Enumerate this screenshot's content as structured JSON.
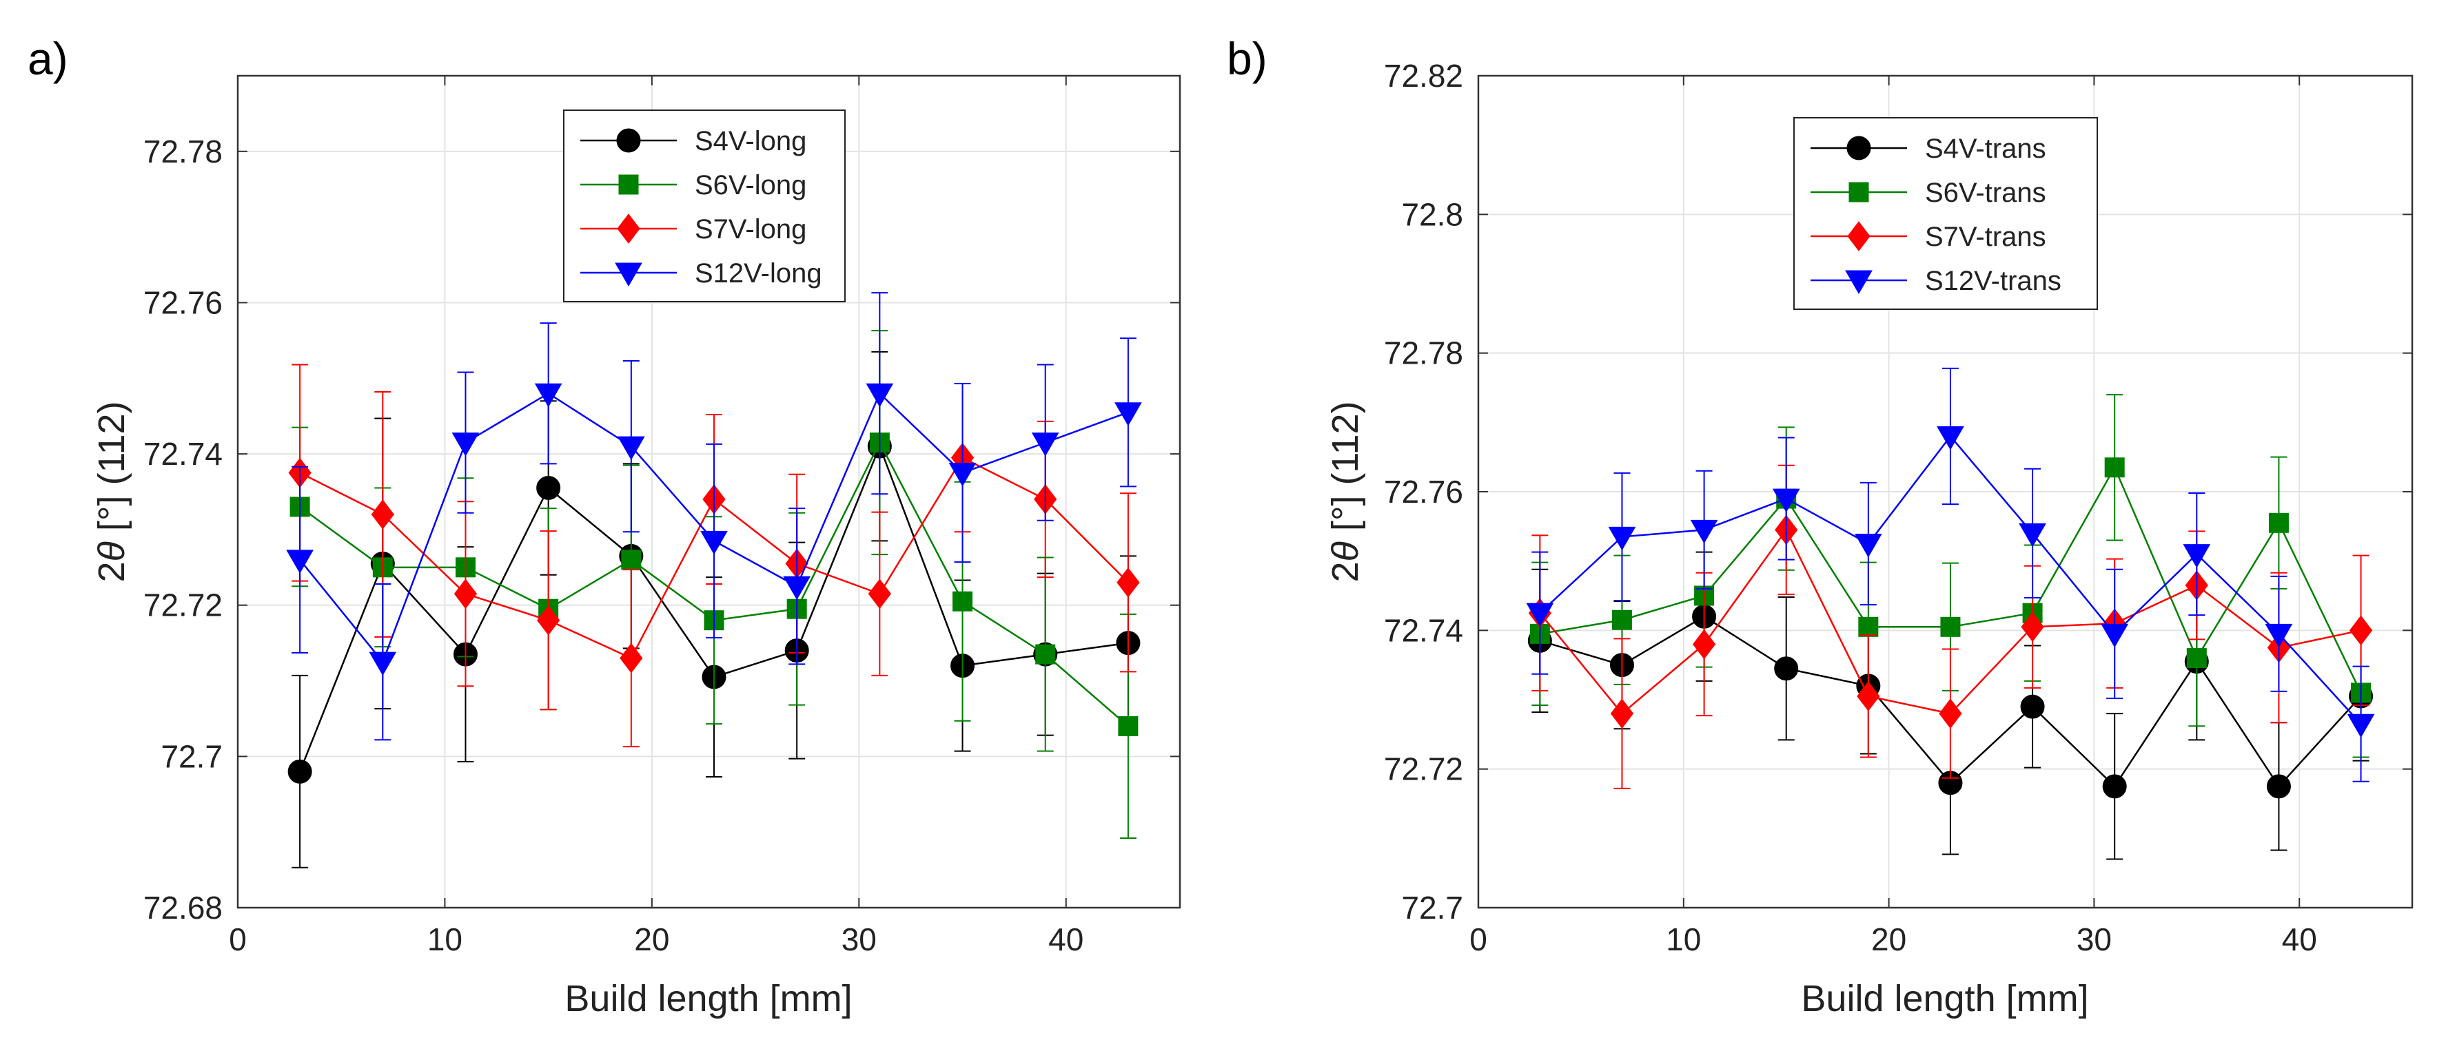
{
  "chart_data": [
    {
      "type": "line",
      "panel_label": "a)",
      "xlabel": "Build length [mm]",
      "ylabel_prefix": "2",
      "ylabel_theta": "θ",
      "ylabel_suffix": " [°] (112)",
      "xlim": [
        0,
        45.5
      ],
      "ylim": [
        72.68,
        72.79
      ],
      "xticks": [
        0,
        10,
        20,
        30,
        40
      ],
      "xtick_labels": [
        "0",
        "10",
        "20",
        "30",
        "40"
      ],
      "yticks": [
        72.68,
        72.7,
        72.72,
        72.74,
        72.76,
        72.78
      ],
      "ytick_labels": [
        "72.68",
        "72.7",
        "72.72",
        "72.74",
        "72.76",
        "72.78"
      ],
      "grid": true,
      "legend_position": "top-center",
      "x": [
        3,
        7,
        11,
        15,
        19,
        23,
        27,
        31,
        35,
        39,
        43
      ],
      "series": [
        {
          "name": "S4V-long",
          "color": "#000000",
          "marker": "circle",
          "values": [
            72.698,
            72.7255,
            72.7135,
            72.7355,
            72.7265,
            72.7105,
            72.714,
            72.741,
            72.712,
            72.7135,
            72.715
          ],
          "errors": [
            0.0127,
            0.0192,
            0.0142,
            0.0115,
            0.0122,
            0.0132,
            0.0143,
            0.0125,
            0.0113,
            0.0107,
            0.0115
          ]
        },
        {
          "name": "S6V-long",
          "color": "#008000",
          "marker": "square",
          "values": [
            72.733,
            72.725,
            72.725,
            72.7195,
            72.726,
            72.718,
            72.7195,
            72.7415,
            72.7205,
            72.7135,
            72.704
          ],
          "errors": [
            0.0105,
            0.0105,
            0.0118,
            0.0133,
            0.0125,
            0.0137,
            0.0127,
            0.0148,
            0.0158,
            0.0128,
            0.0148
          ]
        },
        {
          "name": "S7V-long",
          "color": "#ff0000",
          "marker": "diamond",
          "values": [
            72.7375,
            72.732,
            72.7215,
            72.718,
            72.713,
            72.734,
            72.7255,
            72.7215,
            72.7395,
            72.734,
            72.723
          ],
          "errors": [
            0.0143,
            0.0162,
            0.0122,
            0.0118,
            0.0117,
            0.0112,
            0.0118,
            0.0108,
            0.0098,
            0.0103,
            0.0118
          ]
        },
        {
          "name": "S12V-long",
          "color": "#0000ff",
          "marker": "triangle-down",
          "values": [
            72.726,
            72.7125,
            72.7415,
            72.748,
            72.741,
            72.7285,
            72.7225,
            72.748,
            72.7375,
            72.7415,
            72.7455
          ],
          "errors": [
            0.0123,
            0.0103,
            0.0093,
            0.0093,
            0.0113,
            0.0128,
            0.0103,
            0.0133,
            0.0118,
            0.0103,
            0.0098
          ]
        }
      ]
    },
    {
      "type": "line",
      "panel_label": "b)",
      "xlabel": "Build length [mm]",
      "ylabel_prefix": "2",
      "ylabel_theta": "θ",
      "ylabel_suffix": " [°] (112)",
      "xlim": [
        0,
        45.5
      ],
      "ylim": [
        72.7,
        72.82
      ],
      "xticks": [
        0,
        10,
        20,
        30,
        40
      ],
      "xtick_labels": [
        "0",
        "10",
        "20",
        "30",
        "40"
      ],
      "yticks": [
        72.7,
        72.72,
        72.74,
        72.76,
        72.78,
        72.8,
        72.82
      ],
      "ytick_labels": [
        "72.7",
        "72.72",
        "72.74",
        "72.76",
        "72.78",
        "72.8",
        "72.82"
      ],
      "grid": true,
      "legend_position": "top-center",
      "x": [
        3,
        7,
        11,
        15,
        19,
        23,
        27,
        31,
        35,
        39,
        43
      ],
      "series": [
        {
          "name": "S4V-trans",
          "color": "#000000",
          "marker": "circle",
          "values": [
            72.7385,
            72.735,
            72.742,
            72.7345,
            72.732,
            72.718,
            72.729,
            72.7175,
            72.7355,
            72.7175,
            72.7305
          ],
          "errors": [
            0.0103,
            0.0092,
            0.0093,
            0.0103,
            0.0098,
            0.0103,
            0.0088,
            0.0105,
            0.0113,
            0.0092,
            0.0093
          ]
        },
        {
          "name": "S6V-trans",
          "color": "#008000",
          "marker": "square",
          "values": [
            72.7395,
            72.7415,
            72.745,
            72.759,
            72.7405,
            72.7405,
            72.7425,
            72.7635,
            72.736,
            72.7555,
            72.731
          ],
          "errors": [
            0.0103,
            0.0093,
            0.0103,
            0.0103,
            0.0093,
            0.0092,
            0.0098,
            0.0105,
            0.0098,
            0.0095,
            0.0093
          ]
        },
        {
          "name": "S7V-trans",
          "color": "#ff0000",
          "marker": "diamond",
          "values": [
            72.7425,
            72.728,
            72.738,
            72.7545,
            72.7305,
            72.728,
            72.7405,
            72.741,
            72.7465,
            72.7375,
            72.74
          ],
          "errors": [
            0.0112,
            0.0108,
            0.0103,
            0.0093,
            0.0088,
            0.0093,
            0.0088,
            0.0093,
            0.0078,
            0.0108,
            0.0108
          ]
        },
        {
          "name": "S12V-trans",
          "color": "#0000ff",
          "marker": "triangle-down",
          "values": [
            72.7425,
            72.7535,
            72.7545,
            72.759,
            72.7525,
            72.768,
            72.754,
            72.7395,
            72.751,
            72.7395,
            72.7265
          ],
          "errors": [
            0.0088,
            0.0092,
            0.0085,
            0.0088,
            0.0088,
            0.0098,
            0.0093,
            0.0093,
            0.0088,
            0.0083,
            0.0083
          ]
        }
      ]
    }
  ]
}
